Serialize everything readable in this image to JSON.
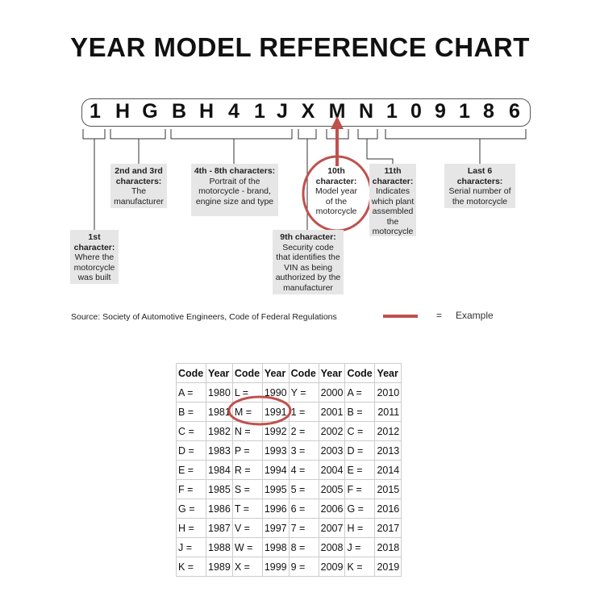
{
  "title": "YEAR MODEL REFERENCE CHART",
  "vin": [
    "1",
    "H",
    "G",
    "B",
    "H",
    "4",
    "1",
    "J",
    "X",
    "M",
    "N",
    "1",
    "0",
    "9",
    "1",
    "8",
    "6"
  ],
  "labels": [
    {
      "heading": "1st character:",
      "text": "Where the motorcycle was built"
    },
    {
      "heading": "2nd and 3rd characters:",
      "text": "The manufacturer"
    },
    {
      "heading": "4th - 8th characters:",
      "text": "Portrait of the motorcycle - brand, engine size and type"
    },
    {
      "heading": "9th character:",
      "text": "Security code that identifies the VIN as being authorized by the manufacturer"
    },
    {
      "heading": "10th character:",
      "text": "Model year of the motorcycle"
    },
    {
      "heading": "11th character:",
      "text": "Indicates which plant assembled the motorcycle"
    },
    {
      "heading": "Last 6 characters:",
      "text": "Serial number of the motorcycle"
    }
  ],
  "source": "Source:  Society of Automotive Engineers, Code of Federal Regulations",
  "legend": {
    "equals": "=",
    "label": "Example",
    "color": "#c0504d"
  },
  "table": {
    "headers": [
      "Code",
      "Year",
      "Code",
      "Year",
      "Code",
      "Year",
      "Code",
      "Year"
    ],
    "rows": [
      [
        "A =",
        "1980",
        "L =",
        "1990",
        "Y =",
        "2000",
        "A =",
        "2010"
      ],
      [
        "B =",
        "1981",
        "M =",
        "1991",
        "1 =",
        "2001",
        "B =",
        "2011"
      ],
      [
        "C =",
        "1982",
        "N =",
        "1992",
        "2 =",
        "2002",
        "C =",
        "2012"
      ],
      [
        "D =",
        "1983",
        "P =",
        "1993",
        "3 =",
        "2003",
        "D =",
        "2013"
      ],
      [
        "E =",
        "1984",
        "R =",
        "1994",
        "4 =",
        "2004",
        "E =",
        "2014"
      ],
      [
        "F =",
        "1985",
        "S =",
        "1995",
        "5 =",
        "2005",
        "F =",
        "2015"
      ],
      [
        "G =",
        "1986",
        "T =",
        "1996",
        "6 =",
        "2006",
        "G =",
        "2016"
      ],
      [
        "H =",
        "1987",
        "V =",
        "1997",
        "7 =",
        "2007",
        "H =",
        "2017"
      ],
      [
        "J =",
        "1988",
        "W =",
        "1998",
        "8 =",
        "2008",
        "J =",
        "2018"
      ],
      [
        "K =",
        "1989",
        "X =",
        "1999",
        "9 =",
        "2009",
        "K =",
        "2019"
      ]
    ]
  }
}
